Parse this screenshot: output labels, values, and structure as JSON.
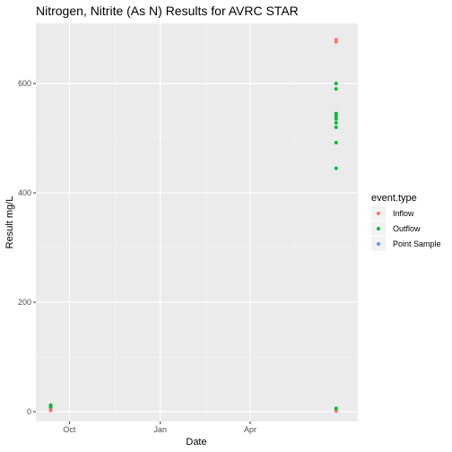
{
  "chart_data": {
    "type": "scatter",
    "title": "Nitrogen, Nitrite  (As N) Results for AVRC STAR",
    "xlabel": "Date",
    "ylabel": "Result mg/L",
    "x_axis": {
      "kind": "date",
      "range": [
        "2023-08-28",
        "2024-07-19"
      ],
      "ticks": [
        {
          "date": "2023-10-01",
          "label": "Oct"
        },
        {
          "date": "2024-01-01",
          "label": "Jan"
        },
        {
          "date": "2024-04-01",
          "label": "Apr"
        }
      ],
      "minor_ticks": [
        "2023-08-16",
        "2023-11-16",
        "2024-02-16",
        "2024-05-16"
      ]
    },
    "y_axis": {
      "range": [
        -18,
        710
      ],
      "ticks": [
        0,
        200,
        400,
        600
      ],
      "minor_ticks": [
        100,
        300,
        500
      ]
    },
    "grid": true,
    "legend": {
      "title": "event.type",
      "position": "right",
      "entries": [
        {
          "name": "Inflow",
          "color": "#F8766D"
        },
        {
          "name": "Outflow",
          "color": "#00BA38"
        },
        {
          "name": "Point Sample",
          "color": "#619CFF"
        }
      ]
    },
    "series": [
      {
        "name": "Inflow",
        "color": "#F8766D",
        "points": [
          {
            "x": "2023-09-12",
            "y": 4
          },
          {
            "x": "2023-09-12",
            "y": 7
          },
          {
            "x": "2023-09-12",
            "y": 2
          },
          {
            "x": "2024-06-27",
            "y": 680
          },
          {
            "x": "2024-06-27",
            "y": 676
          },
          {
            "x": "2024-06-27",
            "y": 3
          },
          {
            "x": "2024-06-27",
            "y": 1
          }
        ]
      },
      {
        "name": "Outflow",
        "color": "#00BA38",
        "points": [
          {
            "x": "2023-09-12",
            "y": 12
          },
          {
            "x": "2023-09-12",
            "y": 9
          },
          {
            "x": "2024-06-27",
            "y": 600
          },
          {
            "x": "2024-06-27",
            "y": 590
          },
          {
            "x": "2024-06-27",
            "y": 545
          },
          {
            "x": "2024-06-27",
            "y": 540
          },
          {
            "x": "2024-06-27",
            "y": 535
          },
          {
            "x": "2024-06-27",
            "y": 528
          },
          {
            "x": "2024-06-27",
            "y": 520
          },
          {
            "x": "2024-06-27",
            "y": 492
          },
          {
            "x": "2024-06-27",
            "y": 445
          },
          {
            "x": "2024-06-27",
            "y": 6
          }
        ]
      },
      {
        "name": "Point Sample",
        "color": "#619CFF",
        "points": []
      }
    ],
    "colors": {
      "panel_background": "#EBEBEB",
      "grid_major": "#FFFFFF",
      "tick_text": "#4D4D4D"
    }
  }
}
